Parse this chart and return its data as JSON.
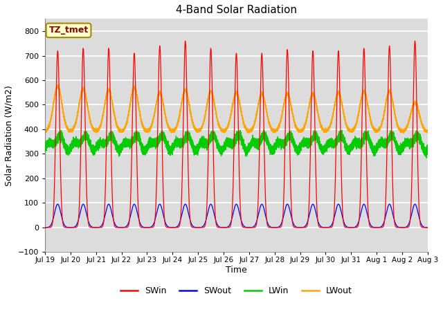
{
  "title": "4-Band Solar Radiation",
  "xlabel": "Time",
  "ylabel": "Solar Radiation (W/m2)",
  "ylim": [
    -100,
    850
  ],
  "yticks": [
    -100,
    0,
    100,
    200,
    300,
    400,
    500,
    600,
    700,
    800
  ],
  "legend_label": "TZ_tmet",
  "colors": {
    "SWin": "#FF0000",
    "SWout": "#0000FF",
    "LWin": "#00CC00",
    "LWout": "#FFA500"
  },
  "n_days": 15,
  "xtick_labels": [
    "Jul 19",
    "Jul 20",
    "Jul 21",
    "Jul 22",
    "Jul 23",
    "Jul 24",
    "Jul 25",
    "Jul 26",
    "Jul 27",
    "Jul 28",
    "Jul 29",
    "Jul 30",
    "Jul 31",
    "Aug 1",
    "Aug 2",
    "Aug 3"
  ],
  "background_color": "#FFFFFF",
  "plot_bg_color": "#DCDCDC",
  "grid_color": "#FFFFFF",
  "legend_box_color": "#FFFFCC",
  "legend_box_edge": "#AA8800",
  "sw_peaks": [
    720,
    730,
    730,
    710,
    740,
    760,
    730,
    710,
    710,
    725,
    720,
    720,
    730,
    740,
    760
  ],
  "swout_peak": 95,
  "lwout_base": 390,
  "lwout_day_peaks": [
    185,
    175,
    170,
    180,
    160,
    170,
    165,
    160,
    155,
    155,
    155,
    160,
    165,
    165,
    120
  ],
  "lwin_base": 310,
  "lwin_amp": 55
}
